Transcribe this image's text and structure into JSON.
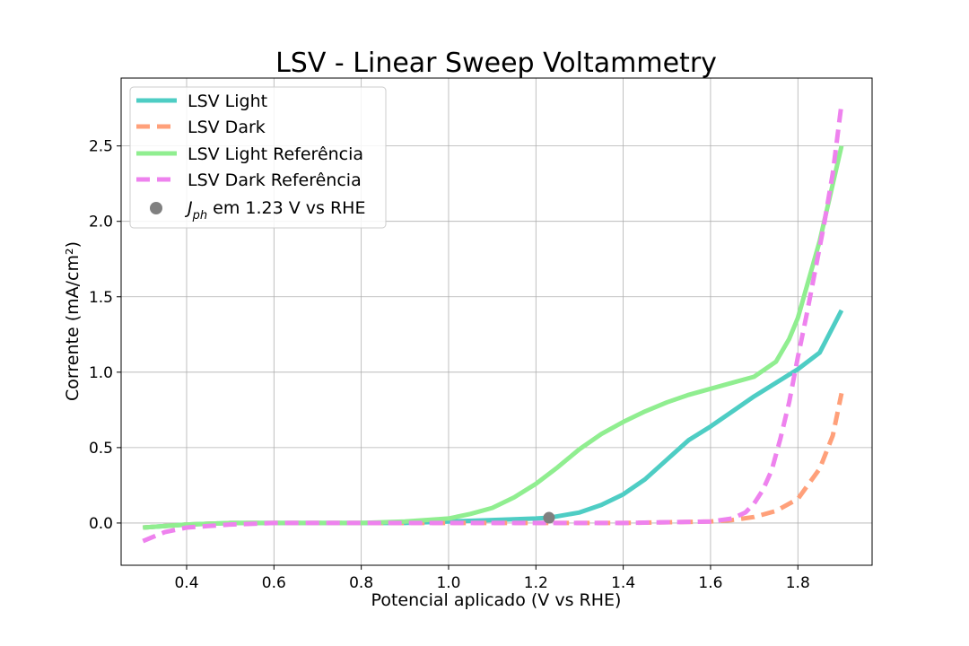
{
  "chart_data": {
    "type": "line",
    "title": "LSV - Linear Sweep Voltammetry",
    "xlabel": "Potencial aplicado (V vs RHE)",
    "ylabel": "Corrente (mA/cm²)",
    "xlim": [
      0.25,
      1.97
    ],
    "ylim": [
      -0.28,
      2.95
    ],
    "xticks": [
      0.4,
      0.6,
      0.8,
      1.0,
      1.2,
      1.4,
      1.6,
      1.8
    ],
    "yticks": [
      0.0,
      0.5,
      1.0,
      1.5,
      2.0,
      2.5
    ],
    "grid": true,
    "legend_position": "top-left",
    "series": [
      {
        "name": "LSV Light",
        "style": "solid",
        "color": "#4ECDC4",
        "x": [
          0.3,
          0.4,
          0.5,
          0.6,
          0.7,
          0.8,
          0.9,
          1.0,
          1.1,
          1.2,
          1.23,
          1.3,
          1.35,
          1.4,
          1.45,
          1.5,
          1.55,
          1.6,
          1.65,
          1.7,
          1.75,
          1.8,
          1.85,
          1.9
        ],
        "y": [
          -0.03,
          -0.01,
          0.0,
          0.0,
          0.0,
          0.0,
          0.0,
          0.01,
          0.02,
          0.03,
          0.035,
          0.07,
          0.12,
          0.19,
          0.29,
          0.42,
          0.55,
          0.64,
          0.74,
          0.84,
          0.93,
          1.02,
          1.13,
          1.41
        ]
      },
      {
        "name": "LSV Dark",
        "style": "dashed",
        "color": "#FFA07A",
        "x": [
          0.3,
          0.4,
          0.5,
          0.6,
          0.8,
          1.0,
          1.2,
          1.4,
          1.6,
          1.65,
          1.7,
          1.75,
          1.8,
          1.85,
          1.88,
          1.9
        ],
        "y": [
          -0.03,
          -0.01,
          0.0,
          0.0,
          0.0,
          0.0,
          0.0,
          0.0,
          0.01,
          0.02,
          0.04,
          0.08,
          0.16,
          0.36,
          0.58,
          0.86
        ]
      },
      {
        "name": "LSV Light Referência",
        "style": "solid",
        "color": "#90EE90",
        "x": [
          0.3,
          0.4,
          0.5,
          0.6,
          0.7,
          0.8,
          0.9,
          1.0,
          1.05,
          1.1,
          1.15,
          1.2,
          1.25,
          1.3,
          1.35,
          1.4,
          1.45,
          1.5,
          1.55,
          1.6,
          1.65,
          1.7,
          1.75,
          1.78,
          1.8,
          1.85,
          1.9
        ],
        "y": [
          -0.03,
          -0.01,
          0.0,
          0.0,
          0.0,
          0.0,
          0.01,
          0.03,
          0.06,
          0.1,
          0.17,
          0.26,
          0.37,
          0.49,
          0.59,
          0.67,
          0.74,
          0.8,
          0.85,
          0.89,
          0.93,
          0.97,
          1.07,
          1.22,
          1.36,
          1.87,
          2.5
        ]
      },
      {
        "name": "LSV Dark Referência",
        "style": "dashed",
        "color": "#EE82EE",
        "x": [
          0.3,
          0.35,
          0.4,
          0.45,
          0.5,
          0.6,
          0.8,
          1.0,
          1.2,
          1.4,
          1.6,
          1.65,
          1.68,
          1.7,
          1.72,
          1.74,
          1.76,
          1.78,
          1.8,
          1.82,
          1.84,
          1.86,
          1.88,
          1.9
        ],
        "y": [
          -0.12,
          -0.06,
          -0.03,
          -0.02,
          -0.01,
          0.0,
          0.0,
          0.0,
          0.0,
          0.0,
          0.01,
          0.03,
          0.07,
          0.13,
          0.22,
          0.35,
          0.56,
          0.8,
          1.1,
          1.38,
          1.68,
          1.98,
          2.32,
          2.78
        ]
      }
    ],
    "marker": {
      "name": "J_ph em 1.23 V vs RHE",
      "label_main": "J",
      "label_sub": "ph",
      "label_rest": " em 1.23 V vs RHE",
      "color": "#808080",
      "x": 1.23,
      "y": 0.035
    }
  }
}
